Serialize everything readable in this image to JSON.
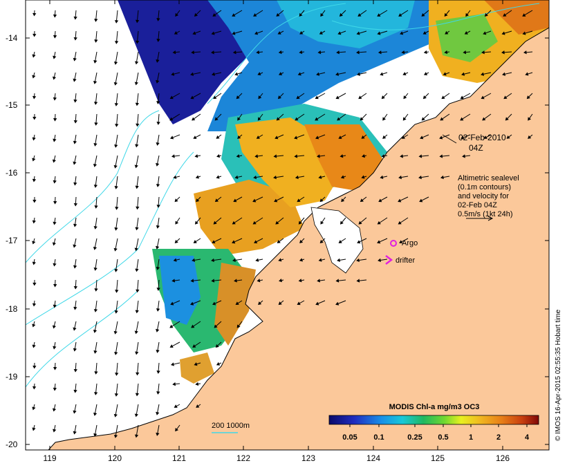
{
  "map": {
    "date_label": "02-Feb-2010",
    "time_label": "04Z",
    "legend_lines": [
      "Altimetric sealevel",
      "(0.1m contours)",
      "and velocity for",
      "02-Feb 04Z",
      "0.5m/s (1kt 24h)"
    ],
    "argo_label": "Argo",
    "drifter_label": "drifter",
    "scale_label": "200  1000m",
    "colorbar_title": "MODIS Chl-a mg/m3 OC3",
    "colorbar_ticks": [
      "0.05",
      "0.1",
      "0.25",
      "0.5",
      "1",
      "2",
      "4"
    ],
    "credit": "© IMOS 16-Apr-2015 02:55:35 Hobart time",
    "y_ticks": [
      "-14",
      "-15",
      "-16",
      "-17",
      "-18",
      "-19",
      "-20"
    ],
    "x_ticks": [
      "119",
      "120",
      "121",
      "122",
      "123",
      "124",
      "125",
      "126"
    ],
    "colors": {
      "land": "#fbc89a",
      "frame": "#000000",
      "contour": "#3fd8e8",
      "argo": "#e020e0",
      "drifter": "#e020e0"
    }
  }
}
